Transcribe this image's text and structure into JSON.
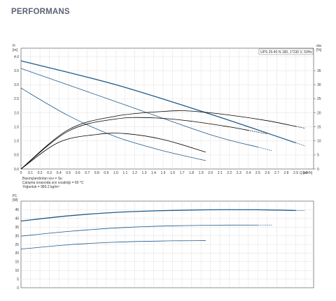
{
  "heading": "PERFORMANS",
  "chart_data": [
    {
      "type": "line",
      "model_label": "UPS 25-40 N 180, 1*230 V, 50Hz",
      "y_axis_label_lines": [
        "H",
        "[m]"
      ],
      "y2_axis_label_lines": [
        "eta",
        "[%]"
      ],
      "x_axis_label": "Q [m³/h]",
      "x_ticks": [
        "0",
        "0.1",
        "0.2",
        "0.3",
        "0.4",
        "0.5",
        "0.6",
        "0.7",
        "0.8",
        "0.9",
        "1.0",
        "1.1",
        "1.2",
        "1.3",
        "1.4",
        "1.5",
        "1.6",
        "1.7",
        "1.8",
        "1.9",
        "2.0",
        "2.1",
        "2.2",
        "2.3",
        "2.4",
        "2.5",
        "2.6",
        "2.7",
        "2.8",
        "2.9",
        "3.0"
      ],
      "y_ticks": [
        "0.0",
        "0.5",
        "1.0",
        "1.5",
        "2.0",
        "2.5",
        "3.0",
        "3.5",
        "4.0"
      ],
      "y2_ticks": [
        "0",
        "5",
        "10",
        "15",
        "20",
        "25",
        "30",
        "35"
      ],
      "xlim": [
        0,
        3.0
      ],
      "ylim": [
        0,
        4.3
      ],
      "y2lim": [
        0,
        43
      ],
      "grid": true,
      "notes": [
        "Basınçlandırılan sıvı = Su",
        "Çalışma sırasında sıvı sıcaklığı = 60 °C",
        "Yoğunluk = 983.2 kg/m³"
      ],
      "series": [
        {
          "kind": "head",
          "color": "#1f5b8c",
          "x": [
            0,
            1.0,
            2.0,
            3.0
          ],
          "y": [
            3.85,
            3.0,
            1.95,
            0.82
          ],
          "dashed_x": [
            2.9,
            3.0
          ]
        },
        {
          "kind": "head",
          "color": "#1f5b8c",
          "x": [
            0,
            1.0,
            2.0,
            2.65
          ],
          "y": [
            3.58,
            2.4,
            1.22,
            0.65
          ],
          "dashed_x": [
            2.5,
            2.65
          ]
        },
        {
          "kind": "head",
          "color": "#1f5b8c",
          "x": [
            0,
            0.5,
            1.0,
            1.5,
            1.95
          ],
          "y": [
            2.88,
            1.9,
            1.15,
            0.65,
            0.3
          ]
        },
        {
          "kind": "efficiency",
          "color": "#000000",
          "x": [
            0,
            0.5,
            1.0,
            1.5,
            1.8,
            2.2,
            2.6,
            3.0
          ],
          "y": [
            0,
            14,
            18.8,
            20.5,
            20.6,
            19.2,
            17.2,
            14.5
          ],
          "dashed_x": [
            2.9,
            3.0
          ]
        },
        {
          "kind": "efficiency",
          "color": "#000000",
          "x": [
            0,
            0.5,
            1.0,
            1.4,
            1.8,
            2.2,
            2.6
          ],
          "y": [
            0,
            13.5,
            17.8,
            18.2,
            17.0,
            15.0,
            12.5
          ],
          "dashed_x": [
            2.4,
            2.6
          ]
        },
        {
          "kind": "efficiency",
          "color": "#000000",
          "x": [
            0,
            0.4,
            0.8,
            1.1,
            1.5,
            1.95
          ],
          "y": [
            0,
            9.5,
            12.3,
            12.6,
            10.5,
            6.0
          ]
        }
      ]
    },
    {
      "type": "line",
      "y_axis_label_lines": [
        "P1",
        "[W]"
      ],
      "y_ticks": [
        "0",
        "5",
        "10",
        "15",
        "20",
        "25",
        "30",
        "35",
        "40",
        "45"
      ],
      "xlim": [
        0,
        3.0
      ],
      "ylim": [
        0,
        50
      ],
      "grid": true,
      "series": [
        {
          "color": "#1f5b8c",
          "x": [
            0,
            0.5,
            1.0,
            1.5,
            2.0,
            2.5,
            3.0
          ],
          "y": [
            38.5,
            41.5,
            43.5,
            44.5,
            45.0,
            45.0,
            44.5
          ],
          "dashed_x": [
            2.9,
            3.0
          ]
        },
        {
          "color": "#1f5b8c",
          "x": [
            0,
            0.5,
            1.0,
            1.5,
            2.0,
            2.65
          ],
          "y": [
            29.8,
            32.5,
            34.5,
            35.6,
            36.1,
            36.2
          ],
          "dashed_x": [
            2.5,
            2.65
          ]
        },
        {
          "color": "#1f5b8c",
          "x": [
            0,
            0.5,
            1.0,
            1.5,
            1.95
          ],
          "y": [
            22.3,
            24.8,
            26.3,
            27.0,
            27.2
          ]
        }
      ]
    }
  ]
}
